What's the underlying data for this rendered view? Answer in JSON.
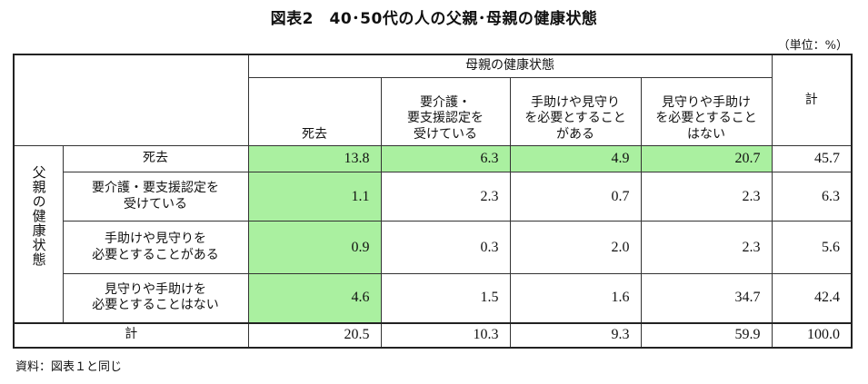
{
  "title": "図表2　40･50代の人の父親･母親の健康状態",
  "unit": "（単位：%）",
  "footnote": "資料：図表１と同じ",
  "colors": {
    "highlight": "#aaf0a0",
    "border": "#222222"
  },
  "table": {
    "col_group_header": "母親の健康状態",
    "row_group_header": "父親の健康状態",
    "col_headers": [
      "死去",
      "要介護・\n要支援認定を\n受けている",
      "手助けや見守り\nを必要とすること\nがある",
      "見守りや手助け\nを必要とすること\nはない"
    ],
    "total_label": "計",
    "rows": [
      {
        "label": "死去",
        "values": [
          "13.8",
          "6.3",
          "4.9",
          "20.7"
        ],
        "total": "45.7"
      },
      {
        "label": "要介護・要支援認定を\n受けている",
        "values": [
          "1.1",
          "2.3",
          "0.7",
          "2.3"
        ],
        "total": "6.3"
      },
      {
        "label": "手助けや見守りを\n必要とすることがある",
        "values": [
          "0.9",
          "0.3",
          "2.0",
          "2.3"
        ],
        "total": "5.6"
      },
      {
        "label": "見守りや手助けを\n必要とすることはない",
        "values": [
          "4.6",
          "1.5",
          "1.6",
          "34.7"
        ],
        "total": "42.4"
      }
    ],
    "total_row": {
      "label": "計",
      "values": [
        "20.5",
        "10.3",
        "9.3",
        "59.9"
      ],
      "total": "100.0"
    }
  }
}
